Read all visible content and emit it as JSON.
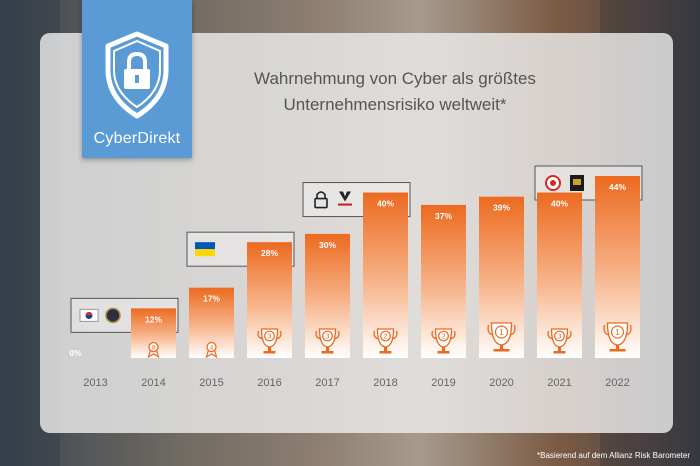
{
  "brand": {
    "name": "CyberDirekt",
    "icon": "shield-lock-icon"
  },
  "footnote": "*Basierend auf dem Allianz Risk Barometer",
  "colors": {
    "bar_top": "#ec6a1f",
    "bar_bottom": "#ffffff",
    "logo": "#5b9bd5",
    "text": "#555555"
  },
  "chart_data": {
    "type": "bar",
    "title": "Wahrnehmung von Cyber als größtes Unternehmensrisiko weltweit*",
    "title_lines": [
      "Wahrnehmung von Cyber als größtes",
      "Unternehmensrisiko weltweit*"
    ],
    "categories": [
      "2013",
      "2014",
      "2015",
      "2016",
      "2017",
      "2018",
      "2019",
      "2020",
      "2021",
      "2022"
    ],
    "values": [
      0,
      12,
      17,
      28,
      30,
      40,
      37,
      39,
      40,
      44
    ],
    "value_labels": [
      "0%",
      "12%",
      "17%",
      "28%",
      "30%",
      "40%",
      "37%",
      "39%",
      "40%",
      "44%"
    ],
    "ranks": [
      null,
      8,
      4,
      3,
      3,
      2,
      2,
      1,
      3,
      1
    ],
    "rank_icons": [
      null,
      "ribbon-rank-icon",
      "ribbon-rank-icon",
      "trophy-rank-icon",
      "trophy-rank-icon",
      "trophy-rank-icon",
      "trophy-rank-icon",
      "trophy-rank-icon",
      "trophy-rank-icon",
      "trophy-rank-icon"
    ],
    "annotations": [
      {
        "from": "2013",
        "to": "2014",
        "icons": [
          "korea-flag-icon",
          "seal-icon"
        ]
      },
      {
        "from": "2015",
        "to": "2016",
        "icons": [
          "ukraine-flag-icon"
        ]
      },
      {
        "from": "2017",
        "to": "2018",
        "icons": [
          "padlock-icon",
          "wolf-logo-icon"
        ]
      },
      {
        "from": "2021",
        "to": "2022",
        "icons": [
          "red-logo-icon",
          "hf-logo-icon"
        ]
      }
    ],
    "ylim": [
      0,
      44
    ],
    "grid": false,
    "legend": "none",
    "xlabel": "",
    "ylabel": ""
  }
}
